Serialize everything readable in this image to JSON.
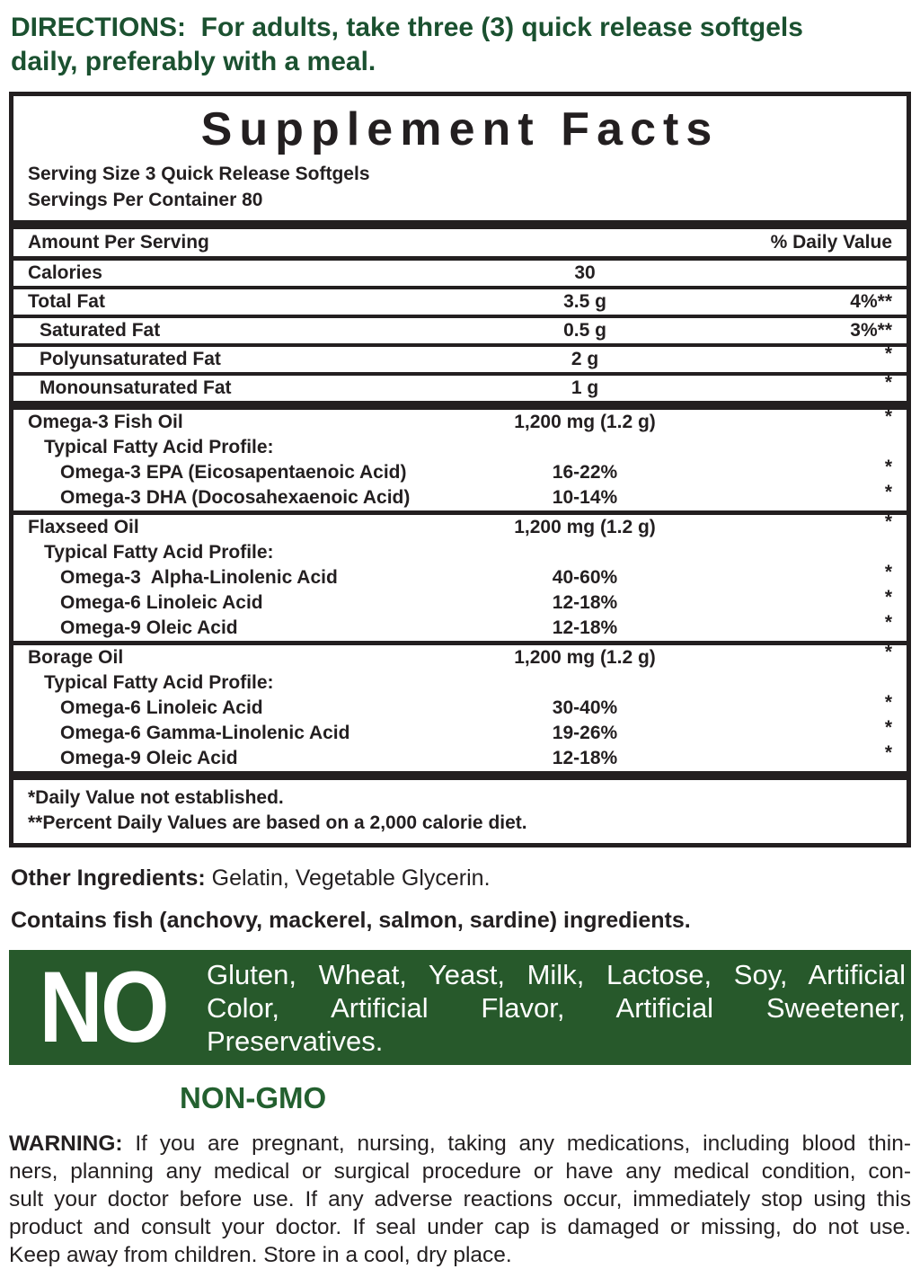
{
  "colors": {
    "green_text": "#1b5130",
    "green_box": "#27592b",
    "print_black": "#231f20"
  },
  "directions": {
    "line1": "DIRECTIONS:  For adults, take three (3) quick release softgels",
    "line2": "daily, preferably with a meal."
  },
  "panel": {
    "title": "Supplement Facts",
    "serving_size": "Serving Size 3 Quick Release Softgels",
    "servings_per_container": "Servings Per Container 80",
    "header": {
      "left": "Amount Per Serving",
      "right": "% Daily Value"
    },
    "rows": [
      {
        "label": "Calories",
        "amount": "30",
        "dv": ""
      },
      {
        "label": "Total Fat",
        "amount": "3.5 g",
        "dv": "4%**"
      },
      {
        "label": "Saturated Fat",
        "amount": "0.5 g",
        "dv": "3%**"
      },
      {
        "label": "Polyunsaturated Fat",
        "amount": "2 g",
        "dv": "*"
      },
      {
        "label": "Monounsaturated Fat",
        "amount": "1 g",
        "dv": "*"
      },
      {
        "label": "Omega-3 Fish Oil",
        "amount": "1,200 mg (1.2 g)",
        "dv": "*"
      },
      {
        "label": "Typical Fatty Acid Profile:",
        "amount": "",
        "dv": ""
      },
      {
        "label": "Omega-3 EPA (Eicosapentaenoic Acid)",
        "amount": "16-22%",
        "dv": "*"
      },
      {
        "label": "Omega-3 DHA (Docosahexaenoic Acid)",
        "amount": "10-14%",
        "dv": "*"
      },
      {
        "label": "Flaxseed Oil",
        "amount": "1,200 mg (1.2 g)",
        "dv": "*"
      },
      {
        "label": "Typical Fatty Acid Profile:",
        "amount": "",
        "dv": ""
      },
      {
        "label": "Omega-3  Alpha-Linolenic Acid",
        "amount": "40-60%",
        "dv": "*"
      },
      {
        "label": "Omega-6 Linoleic Acid",
        "amount": "12-18%",
        "dv": "*"
      },
      {
        "label": "Omega-9 Oleic Acid",
        "amount": "12-18%",
        "dv": "*"
      },
      {
        "label": "Borage Oil",
        "amount": "1,200 mg (1.2 g)",
        "dv": "*"
      },
      {
        "label": "Typical Fatty Acid Profile:",
        "amount": "",
        "dv": ""
      },
      {
        "label": "Omega-6 Linoleic Acid",
        "amount": "30-40%",
        "dv": "*"
      },
      {
        "label": "Omega-6 Gamma-Linolenic Acid",
        "amount": "19-26%",
        "dv": "*"
      },
      {
        "label": "Omega-9 Oleic Acid",
        "amount": "12-18%",
        "dv": "*"
      }
    ],
    "footnotes": {
      "line1": "*Daily Value not established.",
      "line2": "**Percent Daily Values are based on a 2,000 calorie diet."
    }
  },
  "other_ingredients": {
    "label": "Other Ingredients:",
    "value": " Gelatin, Vegetable Glycerin."
  },
  "allergen": "Contains fish (anchovy, mackerel, salmon, sardine) ingredients.",
  "no_box": {
    "no": "NO",
    "line1": "Gluten, Wheat, Yeast, Milk, Lactose, Soy, Artificial",
    "line2": "Color, Artificial Flavor, Artificial Sweetener,",
    "line3": "Preservatives."
  },
  "non_gmo": "NON-GMO",
  "warning": {
    "label": "WARNING:",
    "line1_rest": " If you are pregnant, nursing, taking any medications, including blood thin-",
    "line2": "ners, planning any medical or surgical procedure or have any medical condition, con-",
    "line3": "sult your doctor before use. If any adverse reactions occur, immediately stop using this",
    "line4": "product and consult your doctor. If seal under cap is damaged or missing, do not use.",
    "line5": "Keep away from children. Store in a cool, dry place."
  }
}
